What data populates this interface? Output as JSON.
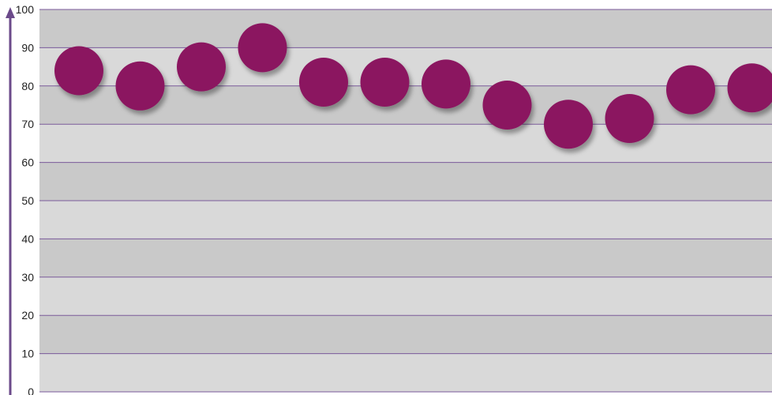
{
  "chart_data": {
    "type": "scatter",
    "x": [
      1,
      2,
      3,
      4,
      5,
      6,
      7,
      8,
      9,
      10,
      11,
      12
    ],
    "y": [
      84,
      80,
      85,
      90,
      81,
      81,
      80.5,
      75,
      70,
      71.5,
      79,
      79.5
    ],
    "ylim": [
      0,
      100
    ],
    "yticks": [
      "0",
      "10",
      "20",
      "30",
      "40",
      "50",
      "60",
      "70",
      "80",
      "90",
      "100"
    ],
    "grid": true,
    "colors": {
      "marker": "#8b1761",
      "axis": "#6b4a8a",
      "gridline": "#7a5a9a",
      "band_dark": "#c9c9c9",
      "band_light": "#d9d9d9"
    }
  }
}
